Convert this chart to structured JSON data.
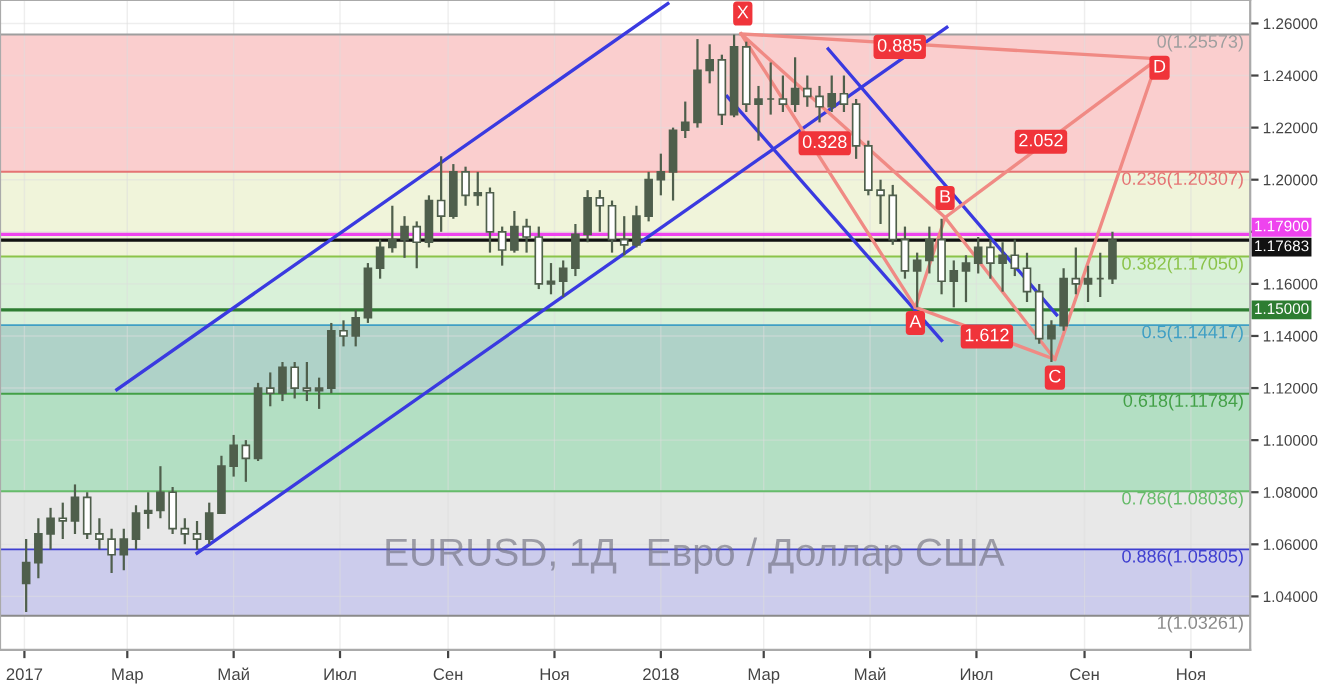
{
  "chart_data": {
    "type": "candlestick",
    "xlim": [
      "2016-12-18",
      "2018-12-05"
    ],
    "ylim": [
      1.0195,
      1.269
    ],
    "xticks": [
      {
        "value": "2017-01-01",
        "label": "2017"
      },
      {
        "value": "2017-03-01",
        "label": "Мар"
      },
      {
        "value": "2017-05-01",
        "label": "Май"
      },
      {
        "value": "2017-07-01",
        "label": "Июл"
      },
      {
        "value": "2017-09-01",
        "label": "Сен"
      },
      {
        "value": "2017-11-01",
        "label": "Ноя"
      },
      {
        "value": "2018-01-01",
        "label": "2018"
      },
      {
        "value": "2018-03-01",
        "label": "Мар"
      },
      {
        "value": "2018-05-01",
        "label": "Май"
      },
      {
        "value": "2018-07-01",
        "label": "Июл"
      },
      {
        "value": "2018-09-01",
        "label": "Сен"
      },
      {
        "value": "2018-11-01",
        "label": "Ноя"
      }
    ],
    "yticks": [
      {
        "value": 1.04,
        "label": "1.04000"
      },
      {
        "value": 1.06,
        "label": "1.06000"
      },
      {
        "value": 1.08,
        "label": "1.08000"
      },
      {
        "value": 1.1,
        "label": "1.10000"
      },
      {
        "value": 1.12,
        "label": "1.12000"
      },
      {
        "value": 1.14,
        "label": "1.14000"
      },
      {
        "value": 1.16,
        "label": "1.16000"
      },
      {
        "value": 1.18,
        "label": null
      },
      {
        "value": 1.2,
        "label": "1.20000"
      },
      {
        "value": 1.22,
        "label": "1.22000"
      },
      {
        "value": 1.24,
        "label": "1.24000"
      },
      {
        "value": 1.26,
        "label": "1.26000"
      }
    ],
    "grid": true,
    "bands": [
      {
        "axis": "y",
        "from": 1.20307,
        "to": 1.25573,
        "color": "#f9c9c9"
      },
      {
        "axis": "y",
        "from": 1.1705,
        "to": 1.20307,
        "color": "#eef3d6"
      },
      {
        "axis": "y",
        "from": 1.14417,
        "to": 1.1705,
        "color": "#d5f0d5"
      },
      {
        "axis": "y",
        "from": 1.11784,
        "to": 1.14417,
        "color": "#a6cdc2"
      },
      {
        "axis": "y",
        "from": 1.08036,
        "to": 1.11784,
        "color": "#abdcbd"
      },
      {
        "axis": "y",
        "from": 1.05805,
        "to": 1.08036,
        "color": "#e6e6e6"
      },
      {
        "axis": "y",
        "from": 1.03261,
        "to": 1.05805,
        "color": "#c6c6ea"
      }
    ],
    "ref_lines": [
      {
        "axis": "y",
        "value": 1.25573,
        "label": "0(1.25573)",
        "color": "#9e9e9e"
      },
      {
        "axis": "y",
        "value": 1.20307,
        "label": "0.236(1.20307)",
        "color": "#e57373"
      },
      {
        "axis": "y",
        "value": 1.1705,
        "label": "0.382(1.17050)",
        "color": "#8bc34a"
      },
      {
        "axis": "y",
        "value": 1.14417,
        "label": "0.5(1.14417)",
        "color": "#3f9fc4"
      },
      {
        "axis": "y",
        "value": 1.11784,
        "label": "0.618(1.11784)",
        "color": "#43a047"
      },
      {
        "axis": "y",
        "value": 1.08036,
        "label": "0.786(1.08036)",
        "color": "#66bb6a"
      },
      {
        "axis": "y",
        "value": 1.05805,
        "label": "0.886(1.05805)",
        "color": "#3f3fd0"
      },
      {
        "axis": "y",
        "value": 1.03261,
        "label": "1(1.03261)",
        "color": "#8a8a8a"
      },
      {
        "axis": "y",
        "value": 1.179,
        "label": "1.17900",
        "color": "#ee44ee",
        "line_style": "solid"
      },
      {
        "axis": "y",
        "value": 1.15,
        "label": "1.15000",
        "color": "#2e7d32",
        "line_style": "solid"
      },
      {
        "axis": "y",
        "value": 1.17683,
        "label": "1.17683",
        "color": "#111111",
        "line_style": "solid"
      }
    ],
    "annotations": [
      "EURUSD, 1Д",
      "Евро / Доллар США",
      {
        "text": "X",
        "x": "2018-02-17",
        "y": 1.2638
      },
      {
        "text": "A",
        "x": "2018-05-27",
        "y": 1.145
      },
      {
        "text": "B",
        "x": "2018-06-13",
        "y": 1.193
      },
      {
        "text": "C",
        "x": "2018-08-15",
        "y": 1.124
      },
      {
        "text": "D",
        "x": "2018-10-14",
        "y": 1.243
      },
      {
        "text": "0.885",
        "x": "2018-05-18",
        "y": 1.251
      },
      {
        "text": "0.328",
        "x": "2018-04-05",
        "y": 1.214
      },
      {
        "text": "2.052",
        "x": "2018-08-07",
        "y": 1.2146
      },
      {
        "text": "1.612",
        "x": "2018-07-07",
        "y": 1.1398
      }
    ],
    "series": [
      {
        "color": "#4f5f4c",
        "x": [
          "2017-01-02",
          "2017-01-09",
          "2017-01-16",
          "2017-01-23",
          "2017-01-30",
          "2017-02-06",
          "2017-02-13",
          "2017-02-20",
          "2017-02-27",
          "2017-03-06",
          "2017-03-13",
          "2017-03-20",
          "2017-03-27",
          "2017-04-03",
          "2017-04-10",
          "2017-04-17",
          "2017-04-24",
          "2017-05-01",
          "2017-05-08",
          "2017-05-15",
          "2017-05-22",
          "2017-05-29",
          "2017-06-05",
          "2017-06-12",
          "2017-06-19",
          "2017-06-26",
          "2017-07-03",
          "2017-07-10",
          "2017-07-17",
          "2017-07-24",
          "2017-07-31",
          "2017-08-07",
          "2017-08-14",
          "2017-08-21",
          "2017-08-28",
          "2017-09-04",
          "2017-09-11",
          "2017-09-18",
          "2017-09-25",
          "2017-10-02",
          "2017-10-09",
          "2017-10-16",
          "2017-10-23",
          "2017-10-30",
          "2017-11-06",
          "2017-11-13",
          "2017-11-20",
          "2017-11-27",
          "2017-12-04",
          "2017-12-11",
          "2017-12-18",
          "2017-12-25",
          "2018-01-01",
          "2018-01-08",
          "2018-01-15",
          "2018-01-22",
          "2018-01-29",
          "2018-02-05",
          "2018-02-12",
          "2018-02-19",
          "2018-02-26",
          "2018-03-05",
          "2018-03-12",
          "2018-03-19",
          "2018-03-26",
          "2018-04-02",
          "2018-04-09",
          "2018-04-16",
          "2018-04-23",
          "2018-04-30",
          "2018-05-07",
          "2018-05-14",
          "2018-05-21",
          "2018-05-28",
          "2018-06-04",
          "2018-06-11",
          "2018-06-18",
          "2018-06-25",
          "2018-07-02",
          "2018-07-09",
          "2018-07-16",
          "2018-07-23",
          "2018-07-30",
          "2018-08-06",
          "2018-08-13",
          "2018-08-20",
          "2018-08-27",
          "2018-09-03",
          "2018-09-10",
          "2018-09-17"
        ],
        "ohlc": [
          [
            1.045,
            1.062,
            1.034,
            1.053
          ],
          [
            1.053,
            1.07,
            1.047,
            1.064
          ],
          [
            1.064,
            1.074,
            1.058,
            1.07
          ],
          [
            1.07,
            1.076,
            1.062,
            1.069
          ],
          [
            1.069,
            1.083,
            1.064,
            1.078
          ],
          [
            1.078,
            1.08,
            1.062,
            1.064
          ],
          [
            1.064,
            1.07,
            1.058,
            1.062
          ],
          [
            1.062,
            1.066,
            1.049,
            1.056
          ],
          [
            1.056,
            1.066,
            1.05,
            1.062
          ],
          [
            1.062,
            1.075,
            1.058,
            1.072
          ],
          [
            1.072,
            1.08,
            1.066,
            1.073
          ],
          [
            1.073,
            1.09,
            1.07,
            1.08
          ],
          [
            1.08,
            1.082,
            1.064,
            1.066
          ],
          [
            1.066,
            1.07,
            1.06,
            1.064
          ],
          [
            1.064,
            1.069,
            1.058,
            1.062
          ],
          [
            1.062,
            1.076,
            1.06,
            1.072
          ],
          [
            1.072,
            1.094,
            1.072,
            1.09
          ],
          [
            1.09,
            1.102,
            1.086,
            1.098
          ],
          [
            1.098,
            1.1,
            1.084,
            1.093
          ],
          [
            1.093,
            1.122,
            1.092,
            1.12
          ],
          [
            1.12,
            1.126,
            1.113,
            1.118
          ],
          [
            1.118,
            1.13,
            1.115,
            1.128
          ],
          [
            1.128,
            1.13,
            1.116,
            1.12
          ],
          [
            1.12,
            1.13,
            1.115,
            1.119
          ],
          [
            1.119,
            1.124,
            1.112,
            1.12
          ],
          [
            1.12,
            1.145,
            1.118,
            1.142
          ],
          [
            1.142,
            1.146,
            1.136,
            1.14
          ],
          [
            1.14,
            1.15,
            1.136,
            1.147
          ],
          [
            1.147,
            1.168,
            1.145,
            1.166
          ],
          [
            1.166,
            1.177,
            1.162,
            1.174
          ],
          [
            1.174,
            1.19,
            1.172,
            1.177
          ],
          [
            1.177,
            1.186,
            1.17,
            1.182
          ],
          [
            1.182,
            1.184,
            1.166,
            1.176
          ],
          [
            1.176,
            1.194,
            1.174,
            1.192
          ],
          [
            1.192,
            1.209,
            1.18,
            1.186
          ],
          [
            1.186,
            1.206,
            1.185,
            1.203
          ],
          [
            1.203,
            1.205,
            1.19,
            1.194
          ],
          [
            1.194,
            1.203,
            1.19,
            1.195
          ],
          [
            1.195,
            1.197,
            1.172,
            1.18
          ],
          [
            1.18,
            1.182,
            1.167,
            1.173
          ],
          [
            1.173,
            1.188,
            1.172,
            1.182
          ],
          [
            1.182,
            1.185,
            1.172,
            1.178
          ],
          [
            1.178,
            1.182,
            1.158,
            1.16
          ],
          [
            1.16,
            1.168,
            1.156,
            1.161
          ],
          [
            1.161,
            1.169,
            1.155,
            1.166
          ],
          [
            1.166,
            1.183,
            1.163,
            1.179
          ],
          [
            1.179,
            1.196,
            1.176,
            1.193
          ],
          [
            1.193,
            1.196,
            1.18,
            1.19
          ],
          [
            1.19,
            1.192,
            1.172,
            1.177
          ],
          [
            1.177,
            1.186,
            1.171,
            1.175
          ],
          [
            1.175,
            1.19,
            1.174,
            1.186
          ],
          [
            1.186,
            1.203,
            1.184,
            1.2
          ],
          [
            1.2,
            1.21,
            1.194,
            1.203
          ],
          [
            1.203,
            1.22,
            1.192,
            1.219
          ],
          [
            1.219,
            1.23,
            1.216,
            1.222
          ],
          [
            1.222,
            1.254,
            1.22,
            1.242
          ],
          [
            1.242,
            1.252,
            1.237,
            1.246
          ],
          [
            1.246,
            1.248,
            1.221,
            1.225
          ],
          [
            1.225,
            1.2557,
            1.224,
            1.251
          ],
          [
            1.251,
            1.253,
            1.226,
            1.229
          ],
          [
            1.229,
            1.236,
            1.215,
            1.231
          ],
          [
            1.231,
            1.245,
            1.225,
            1.231
          ],
          [
            1.231,
            1.24,
            1.226,
            1.229
          ],
          [
            1.229,
            1.247,
            1.226,
            1.235
          ],
          [
            1.235,
            1.24,
            1.228,
            1.232
          ],
          [
            1.232,
            1.236,
            1.222,
            1.228
          ],
          [
            1.228,
            1.24,
            1.226,
            1.233
          ],
          [
            1.233,
            1.24,
            1.226,
            1.229
          ],
          [
            1.229,
            1.231,
            1.208,
            1.213
          ],
          [
            1.213,
            1.215,
            1.194,
            1.196
          ],
          [
            1.196,
            1.2,
            1.183,
            1.194
          ],
          [
            1.194,
            1.198,
            1.175,
            1.177
          ],
          [
            1.177,
            1.182,
            1.162,
            1.165
          ],
          [
            1.165,
            1.172,
            1.151,
            1.169
          ],
          [
            1.169,
            1.182,
            1.164,
            1.177
          ],
          [
            1.177,
            1.185,
            1.156,
            1.161
          ],
          [
            1.161,
            1.169,
            1.151,
            1.165
          ],
          [
            1.165,
            1.171,
            1.153,
            1.168
          ],
          [
            1.168,
            1.178,
            1.164,
            1.174
          ],
          [
            1.174,
            1.177,
            1.162,
            1.168
          ],
          [
            1.168,
            1.176,
            1.157,
            1.171
          ],
          [
            1.171,
            1.177,
            1.163,
            1.166
          ],
          [
            1.166,
            1.172,
            1.153,
            1.157
          ],
          [
            1.157,
            1.16,
            1.137,
            1.139
          ],
          [
            1.139,
            1.146,
            1.13,
            1.144
          ],
          [
            1.144,
            1.166,
            1.142,
            1.162
          ],
          [
            1.162,
            1.174,
            1.156,
            1.16
          ],
          [
            1.16,
            1.167,
            1.153,
            1.162
          ],
          [
            1.162,
            1.172,
            1.155,
            1.162
          ],
          [
            1.162,
            1.18,
            1.16,
            1.17683
          ]
        ]
      },
      {
        "type": "line",
        "color": "#3a3ae0",
        "x": [
          "2017-02-23",
          "2018-01-05"
        ],
        "values": [
          1.1194,
          1.2676
        ]
      },
      {
        "type": "line",
        "color": "#3a3ae0",
        "x": [
          "2017-04-10",
          "2018-06-14"
        ],
        "values": [
          1.0566,
          1.2585
        ]
      },
      {
        "type": "line",
        "color": "#3a3ae0",
        "x": [
          "2018-02-08",
          "2018-06-11"
        ],
        "values": [
          1.232,
          1.1383
        ]
      },
      {
        "type": "line",
        "color": "#3a3ae0",
        "x": [
          "2018-04-07",
          "2018-08-16"
        ],
        "values": [
          1.2502,
          1.1481
        ]
      },
      {
        "type": "line",
        "color": "#f08a84",
        "x": [
          "2018-02-16",
          "2018-05-27",
          "2018-06-13",
          "2018-08-15",
          "2018-10-13"
        ],
        "values": [
          1.256,
          1.151,
          1.1855,
          1.131,
          1.2464
        ]
      },
      {
        "type": "line",
        "color": "#f08a84",
        "x": [
          "2018-02-16",
          "2018-06-13"
        ],
        "values": [
          1.256,
          1.1855
        ]
      },
      {
        "type": "line",
        "color": "#f08a84",
        "x": [
          "2018-05-27",
          "2018-08-15"
        ],
        "values": [
          1.151,
          1.131
        ]
      },
      {
        "type": "line",
        "color": "#f08a84",
        "x": [
          "2018-06-13",
          "2018-10-13"
        ],
        "values": [
          1.1855,
          1.2464
        ]
      },
      {
        "type": "line",
        "color": "#f08a84",
        "x": [
          "2018-02-16",
          "2018-10-13"
        ],
        "values": [
          1.256,
          1.2464
        ]
      }
    ]
  }
}
